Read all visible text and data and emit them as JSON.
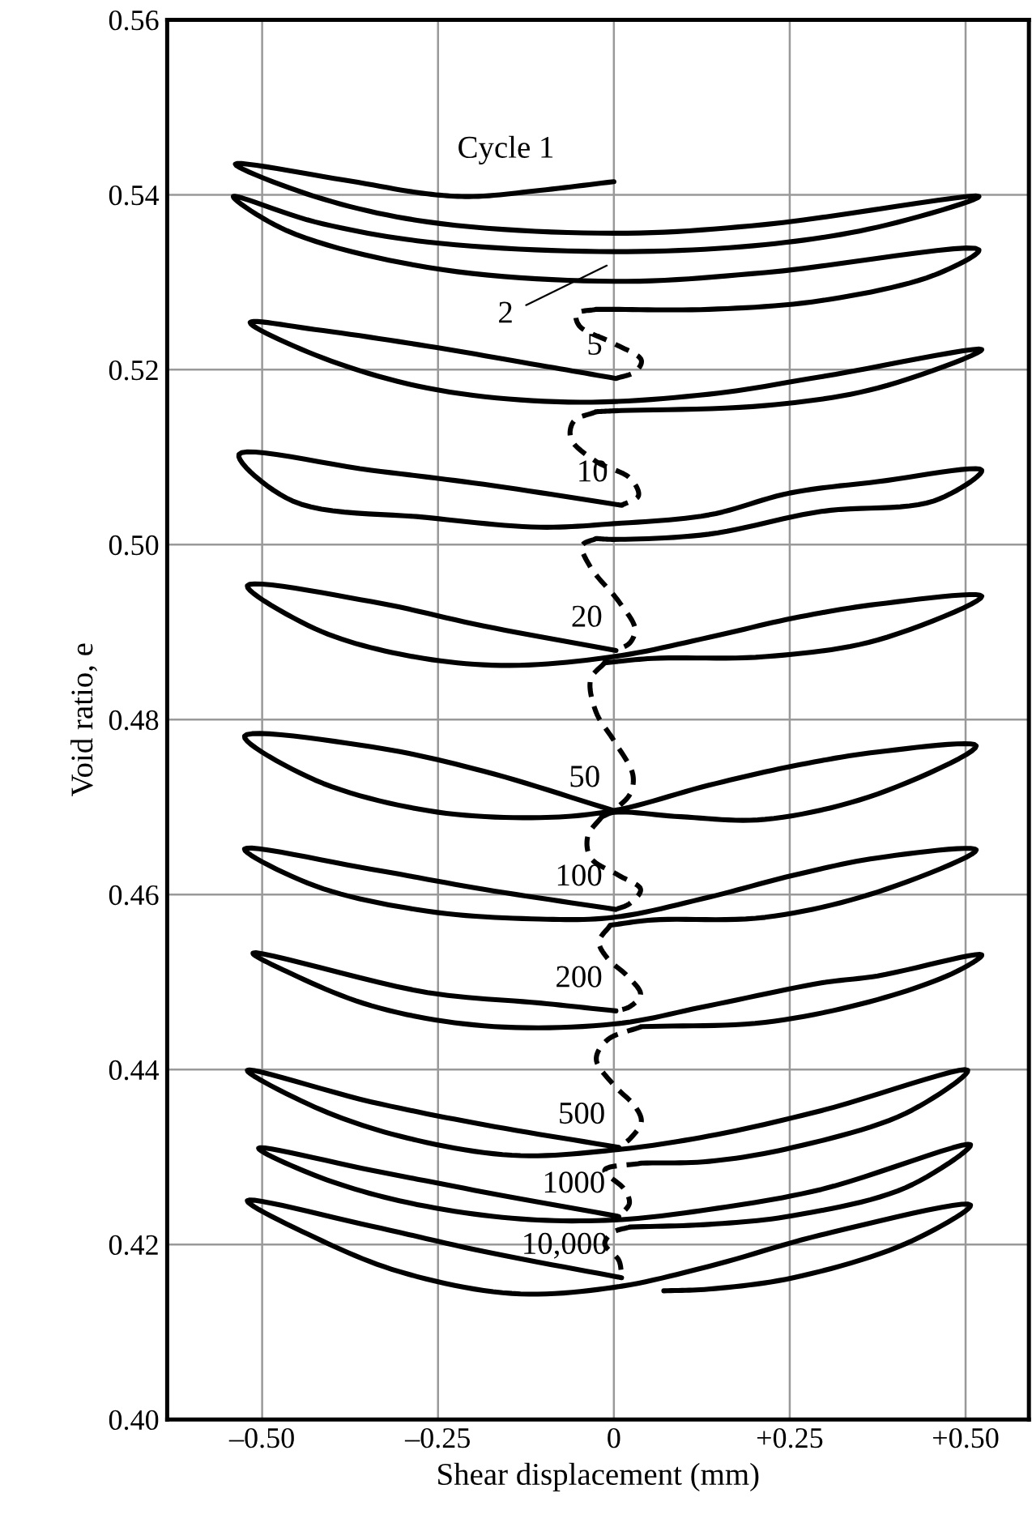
{
  "chart_data": {
    "type": "line",
    "xlabel": "Shear displacement (mm)",
    "ylabel": "Void ratio, e",
    "xlim": [
      -0.635,
      0.59
    ],
    "ylim": [
      0.4,
      0.56
    ],
    "xticks": [
      {
        "value": -0.5,
        "label": "–0.50"
      },
      {
        "value": -0.25,
        "label": "–0.25"
      },
      0,
      {
        "value": 0.25,
        "label": "+0.25"
      },
      {
        "value": 0.5,
        "label": "+0.50"
      }
    ],
    "yticks": [
      {
        "value": 0.4,
        "label": "0.40"
      },
      {
        "value": 0.42,
        "label": "0.42"
      },
      {
        "value": 0.44,
        "label": "0.44"
      },
      {
        "value": 0.46,
        "label": "0.46"
      },
      {
        "value": 0.48,
        "label": "0.48"
      },
      {
        "value": 0.5,
        "label": "0.50"
      },
      {
        "value": 0.52,
        "label": "0.52"
      },
      {
        "value": 0.54,
        "label": "0.54"
      },
      {
        "value": 0.56,
        "label": "0.56"
      }
    ],
    "grid": true,
    "marker": "none",
    "line_style": "solid",
    "series": [
      {
        "color": "#000000",
        "x": [
          0,
          -0.105,
          -0.2,
          -0.265,
          -0.385,
          -0.538,
          -0.425,
          -0.265,
          0,
          0.215,
          0.519,
          0.375,
          0.215,
          0,
          -0.265,
          -0.425,
          -0.541,
          -0.465,
          -0.265,
          0,
          0.215,
          0.519,
          0.455,
          0.295,
          0.135,
          0,
          -0.025
        ],
        "values": [
          0.5415,
          0.5405,
          0.5398,
          0.5401,
          0.5417,
          0.5435,
          0.5398,
          0.5369,
          0.5356,
          0.5366,
          0.5398,
          0.5363,
          0.5343,
          0.5335,
          0.5346,
          0.5369,
          0.5398,
          0.5359,
          0.5317,
          0.5301,
          0.5311,
          0.5337,
          0.5308,
          0.5279,
          0.5269,
          0.5269,
          0.5269
        ]
      },
      {
        "color": "#000000",
        "line_style": "dashed",
        "x": [
          -0.025,
          -0.053,
          -0.049,
          0,
          0.039,
          0.031,
          0.003
        ],
        "values": [
          0.5269,
          0.5264,
          0.525,
          0.523,
          0.5211,
          0.5198,
          0.519
        ]
      },
      {
        "color": "#000000",
        "x": [
          0.003,
          -0.105,
          -0.265,
          -0.425,
          -0.517,
          -0.425,
          -0.265,
          -0.065,
          0.135,
          0.295,
          0.523,
          0.375,
          0.215,
          0,
          -0.025
        ],
        "values": [
          0.519,
          0.5205,
          0.5227,
          0.5246,
          0.5254,
          0.5217,
          0.5179,
          0.5163,
          0.5172,
          0.5192,
          0.5223,
          0.5179,
          0.5159,
          0.5153,
          0.5152
        ]
      },
      {
        "color": "#000000",
        "line_style": "dashed",
        "x": [
          -0.025,
          -0.057,
          -0.061,
          -0.025,
          0.023,
          0.035,
          0.011
        ],
        "values": [
          0.5152,
          0.5141,
          0.5121,
          0.5095,
          0.5076,
          0.5056,
          0.5045
        ]
      },
      {
        "color": "#000000",
        "x": [
          0.011,
          -0.185,
          -0.345,
          -0.533,
          -0.457,
          -0.265,
          -0.105,
          0,
          0.135,
          0.25,
          0.375,
          0.523,
          0.455,
          0.295,
          0.135,
          0,
          -0.025
        ],
        "values": [
          0.5045,
          0.5069,
          0.5085,
          0.5103,
          0.505,
          0.5031,
          0.502,
          0.5024,
          0.5034,
          0.5059,
          0.5072,
          0.5085,
          0.505,
          0.5038,
          0.5012,
          0.5006,
          0.5007
        ]
      },
      {
        "color": "#000000",
        "line_style": "dashed",
        "x": [
          -0.025,
          -0.045,
          -0.033,
          0.007,
          0.03,
          0.023,
          0.003
        ],
        "values": [
          0.5007,
          0.4999,
          0.4974,
          0.4935,
          0.4904,
          0.4888,
          0.4879
        ]
      },
      {
        "color": "#000000",
        "x": [
          0.003,
          -0.185,
          -0.345,
          -0.521,
          -0.425,
          -0.305,
          -0.161,
          0,
          0.135,
          0.255,
          0.375,
          0.523,
          0.375,
          0.215,
          0.055,
          -0.013
        ],
        "values": [
          0.4879,
          0.4907,
          0.4935,
          0.4953,
          0.4904,
          0.4875,
          0.4862,
          0.4872,
          0.4894,
          0.4916,
          0.4932,
          0.4941,
          0.4891,
          0.4872,
          0.487,
          0.4865
        ]
      },
      {
        "color": "#000000",
        "line_style": "dashed",
        "x": [
          -0.013,
          -0.033,
          -0.025,
          0,
          0.027,
          0.023,
          0
        ],
        "values": [
          0.4865,
          0.4846,
          0.4808,
          0.4776,
          0.4737,
          0.4715,
          0.4696
        ]
      },
      {
        "color": "#000000",
        "x": [
          0,
          -0.185,
          -0.345,
          -0.525,
          -0.425,
          -0.265,
          -0.105,
          0,
          0.135,
          0.255,
          0.375,
          0.515,
          0.375,
          0.215,
          0.095,
          0,
          -0.017
        ],
        "values": [
          0.4696,
          0.4741,
          0.4769,
          0.4781,
          0.4731,
          0.4696,
          0.4688,
          0.4696,
          0.4725,
          0.4747,
          0.4763,
          0.477,
          0.4715,
          0.4686,
          0.4689,
          0.4694,
          0.4689
        ]
      },
      {
        "color": "#000000",
        "line_style": "dashed",
        "x": [
          -0.017,
          -0.037,
          -0.033,
          0.007,
          0.038,
          0.023,
          0.003
        ],
        "values": [
          0.4689,
          0.4667,
          0.4642,
          0.4622,
          0.4606,
          0.459,
          0.4583
        ]
      },
      {
        "color": "#000000",
        "x": [
          0.003,
          -0.185,
          -0.345,
          -0.525,
          -0.425,
          -0.265,
          -0.105,
          0,
          0.135,
          0.255,
          0.375,
          0.515,
          0.375,
          0.215,
          0.055,
          -0.005
        ],
        "values": [
          0.4583,
          0.4606,
          0.4629,
          0.4652,
          0.461,
          0.4581,
          0.4572,
          0.4574,
          0.4597,
          0.4622,
          0.4642,
          0.4651,
          0.4603,
          0.4574,
          0.4571,
          0.4565
        ]
      },
      {
        "color": "#000000",
        "line_style": "dashed",
        "x": [
          -0.005,
          -0.021,
          -0.009,
          0.019,
          0.038,
          0.023,
          0.003
        ],
        "values": [
          0.4565,
          0.4546,
          0.4527,
          0.4507,
          0.4486,
          0.4472,
          0.4467
        ]
      },
      {
        "color": "#000000",
        "x": [
          0.003,
          -0.105,
          -0.265,
          -0.513,
          -0.465,
          -0.345,
          -0.185,
          0,
          0.135,
          0.295,
          0.375,
          0.523,
          0.487,
          0.375,
          0.215,
          0.039
        ],
        "values": [
          0.4467,
          0.4476,
          0.4488,
          0.4533,
          0.4512,
          0.4473,
          0.445,
          0.4452,
          0.4473,
          0.4499,
          0.4507,
          0.4531,
          0.4512,
          0.448,
          0.4454,
          0.4449
        ]
      },
      {
        "color": "#000000",
        "line_style": "dashed",
        "x": [
          0.039,
          -0.009,
          -0.025,
          -0.001,
          0.031,
          0.039,
          0.023,
          0.007
        ],
        "values": [
          0.4449,
          0.4434,
          0.4412,
          0.4383,
          0.4357,
          0.434,
          0.4321,
          0.4311
        ]
      },
      {
        "color": "#000000",
        "x": [
          0.007,
          -0.185,
          -0.345,
          -0.521,
          -0.425,
          -0.305,
          -0.145,
          0,
          0.135,
          0.295,
          0.503,
          0.415,
          0.255,
          0.135,
          0.039
        ],
        "values": [
          0.4311,
          0.4337,
          0.4363,
          0.4399,
          0.4357,
          0.4324,
          0.4302,
          0.4308,
          0.4324,
          0.4353,
          0.4399,
          0.435,
          0.4311,
          0.4295,
          0.4293
        ]
      },
      {
        "color": "#000000",
        "line_style": "dashed",
        "x": [
          0.039,
          -0.013,
          0.015,
          0.022,
          0.007
        ],
        "values": [
          0.4293,
          0.4285,
          0.4263,
          0.4247,
          0.4232
        ]
      },
      {
        "color": "#000000",
        "x": [
          0.007,
          -0.185,
          -0.345,
          -0.505,
          -0.425,
          -0.305,
          -0.145,
          0,
          0.135,
          0.295,
          0.507,
          0.415,
          0.255,
          0.135,
          0.023
        ],
        "values": [
          0.4232,
          0.426,
          0.4285,
          0.431,
          0.4279,
          0.425,
          0.423,
          0.4228,
          0.424,
          0.4263,
          0.4314,
          0.4265,
          0.4233,
          0.4223,
          0.422
        ]
      },
      {
        "color": "#000000",
        "line_style": "dashed",
        "x": [
          0.023,
          -0.001,
          -0.013,
          0.007,
          0.011
        ],
        "values": [
          0.422,
          0.4214,
          0.4201,
          0.4182,
          0.4166
        ]
      },
      {
        "color": "#000000",
        "x": [
          0.011,
          -0.185,
          -0.345,
          -0.521,
          -0.425,
          -0.305,
          -0.145,
          0,
          0.135,
          0.295,
          0.507,
          0.415,
          0.255,
          0.135,
          0.071
        ],
        "values": [
          0.4162,
          0.4192,
          0.4221,
          0.425,
          0.4208,
          0.4169,
          0.4144,
          0.4151,
          0.4175,
          0.4211,
          0.4245,
          0.4201,
          0.4162,
          0.4149,
          0.4147
        ]
      }
    ],
    "annotations": [
      "Cycle 1",
      "2",
      "5",
      "10",
      "20",
      "50",
      "100",
      "200",
      "500",
      "1000",
      "10,000"
    ]
  }
}
